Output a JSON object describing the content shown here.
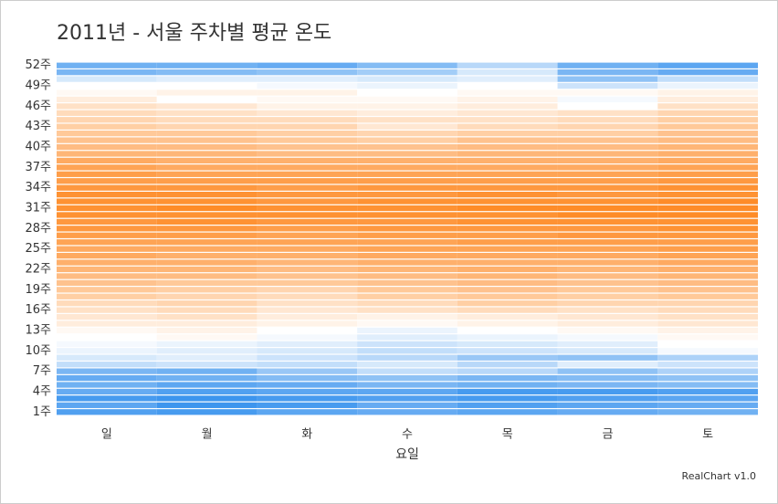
{
  "chart_data": {
    "type": "heatmap",
    "title": "2011년 - 서울 주차별 평균 온도",
    "x_label": "요일",
    "credits": "RealChart v1.0",
    "categories": [
      "일",
      "월",
      "화",
      "수",
      "목",
      "금",
      "토"
    ],
    "y_categories": [
      "1주",
      null,
      null,
      "4주",
      null,
      null,
      "7주",
      null,
      null,
      "10주",
      null,
      null,
      "13주",
      null,
      null,
      "16주",
      null,
      null,
      "19주",
      null,
      null,
      "22주",
      null,
      null,
      "25주",
      null,
      null,
      "28주",
      null,
      null,
      "31주",
      null,
      null,
      "34주",
      null,
      null,
      "37주",
      null,
      null,
      "40주",
      null,
      null,
      "43주",
      null,
      null,
      "46주",
      null,
      null,
      "49주",
      null,
      null,
      "52주"
    ],
    "colors": [
      "#3d95ee",
      "#ffffff",
      "#fe8c28"
    ],
    "values": [
      [
        -8,
        -9,
        -7,
        -6,
        -7,
        -6,
        -5
      ],
      [
        -7,
        -10,
        -9,
        -6,
        -8,
        -7,
        -6
      ],
      [
        -9,
        -10,
        -9,
        -8,
        -9,
        -8,
        -7
      ],
      [
        -6,
        -8,
        -7,
        -7,
        -9,
        -9,
        -8
      ],
      [
        -5,
        -7,
        -6,
        -4,
        -5,
        -4,
        -3
      ],
      [
        -6,
        -5,
        -3,
        -2,
        -4,
        -3,
        -2
      ],
      [
        -4,
        -5,
        -1,
        3,
        2,
        -2,
        1
      ],
      [
        3,
        4,
        3,
        5,
        2,
        6,
        4
      ],
      [
        5,
        6,
        4,
        2,
        -1,
        -2,
        1
      ],
      [
        7,
        6,
        5,
        3,
        4,
        5,
        8
      ],
      [
        8,
        7,
        6,
        4,
        5,
        6,
        9
      ],
      [
        9,
        10,
        8,
        6,
        7,
        8,
        10
      ],
      [
        10,
        11,
        9,
        7,
        9,
        10,
        11
      ],
      [
        12,
        12,
        11,
        10,
        11,
        12,
        13
      ],
      [
        13,
        14,
        12,
        11,
        12,
        13,
        14
      ],
      [
        14,
        15,
        13,
        14,
        15,
        14,
        15
      ],
      [
        15,
        16,
        14,
        15,
        17,
        16,
        16
      ],
      [
        17,
        16,
        15,
        17,
        18,
        17,
        18
      ],
      [
        18,
        17,
        16,
        18,
        19,
        18,
        19
      ],
      [
        19,
        18,
        18,
        19,
        20,
        19,
        20
      ],
      [
        20,
        20,
        19,
        20,
        21,
        20,
        21
      ],
      [
        21,
        21,
        20,
        21,
        22,
        21,
        22
      ],
      [
        22,
        22,
        21,
        22,
        22,
        22,
        23
      ],
      [
        23,
        22,
        22,
        23,
        23,
        23,
        24
      ],
      [
        23,
        23,
        23,
        24,
        24,
        24,
        25
      ],
      [
        24,
        24,
        24,
        24,
        25,
        25,
        25
      ],
      [
        25,
        25,
        24,
        25,
        25,
        26,
        26
      ],
      [
        26,
        26,
        25,
        26,
        26,
        26,
        27
      ],
      [
        26,
        27,
        26,
        26,
        27,
        27,
        27
      ],
      [
        27,
        27,
        27,
        27,
        27,
        28,
        28
      ],
      [
        27,
        28,
        27,
        27,
        28,
        28,
        28
      ],
      [
        27,
        27,
        26,
        27,
        27,
        27,
        28
      ],
      [
        27,
        27,
        26,
        26,
        27,
        26,
        27
      ],
      [
        26,
        26,
        25,
        26,
        26,
        26,
        27
      ],
      [
        25,
        25,
        25,
        25,
        25,
        25,
        26
      ],
      [
        25,
        24,
        24,
        24,
        24,
        24,
        25
      ],
      [
        24,
        23,
        23,
        23,
        23,
        23,
        24
      ],
      [
        23,
        22,
        22,
        22,
        22,
        22,
        23
      ],
      [
        21,
        21,
        20,
        20,
        21,
        21,
        22
      ],
      [
        20,
        20,
        19,
        19,
        20,
        20,
        21
      ],
      [
        19,
        19,
        18,
        17,
        19,
        19,
        20
      ],
      [
        18,
        18,
        17,
        16,
        17,
        17,
        19
      ],
      [
        17,
        16,
        16,
        13,
        15,
        16,
        18
      ],
      [
        16,
        15,
        15,
        14,
        14,
        15,
        17
      ],
      [
        15,
        14,
        13,
        12,
        13,
        14,
        16
      ],
      [
        14,
        13,
        11,
        11,
        12,
        9,
        14
      ],
      [
        12,
        9,
        10,
        10,
        11,
        8,
        12
      ],
      [
        10,
        11,
        11,
        9,
        10,
        10,
        11
      ],
      [
        9,
        9,
        8,
        7,
        9,
        4,
        7
      ],
      [
        5,
        6,
        6,
        5,
        6,
        -2,
        3
      ],
      [
        -4,
        -3,
        -2,
        0,
        5,
        -4,
        -6
      ],
      [
        -5,
        -5,
        -6,
        -3,
        2,
        -5,
        -7
      ]
    ]
  }
}
